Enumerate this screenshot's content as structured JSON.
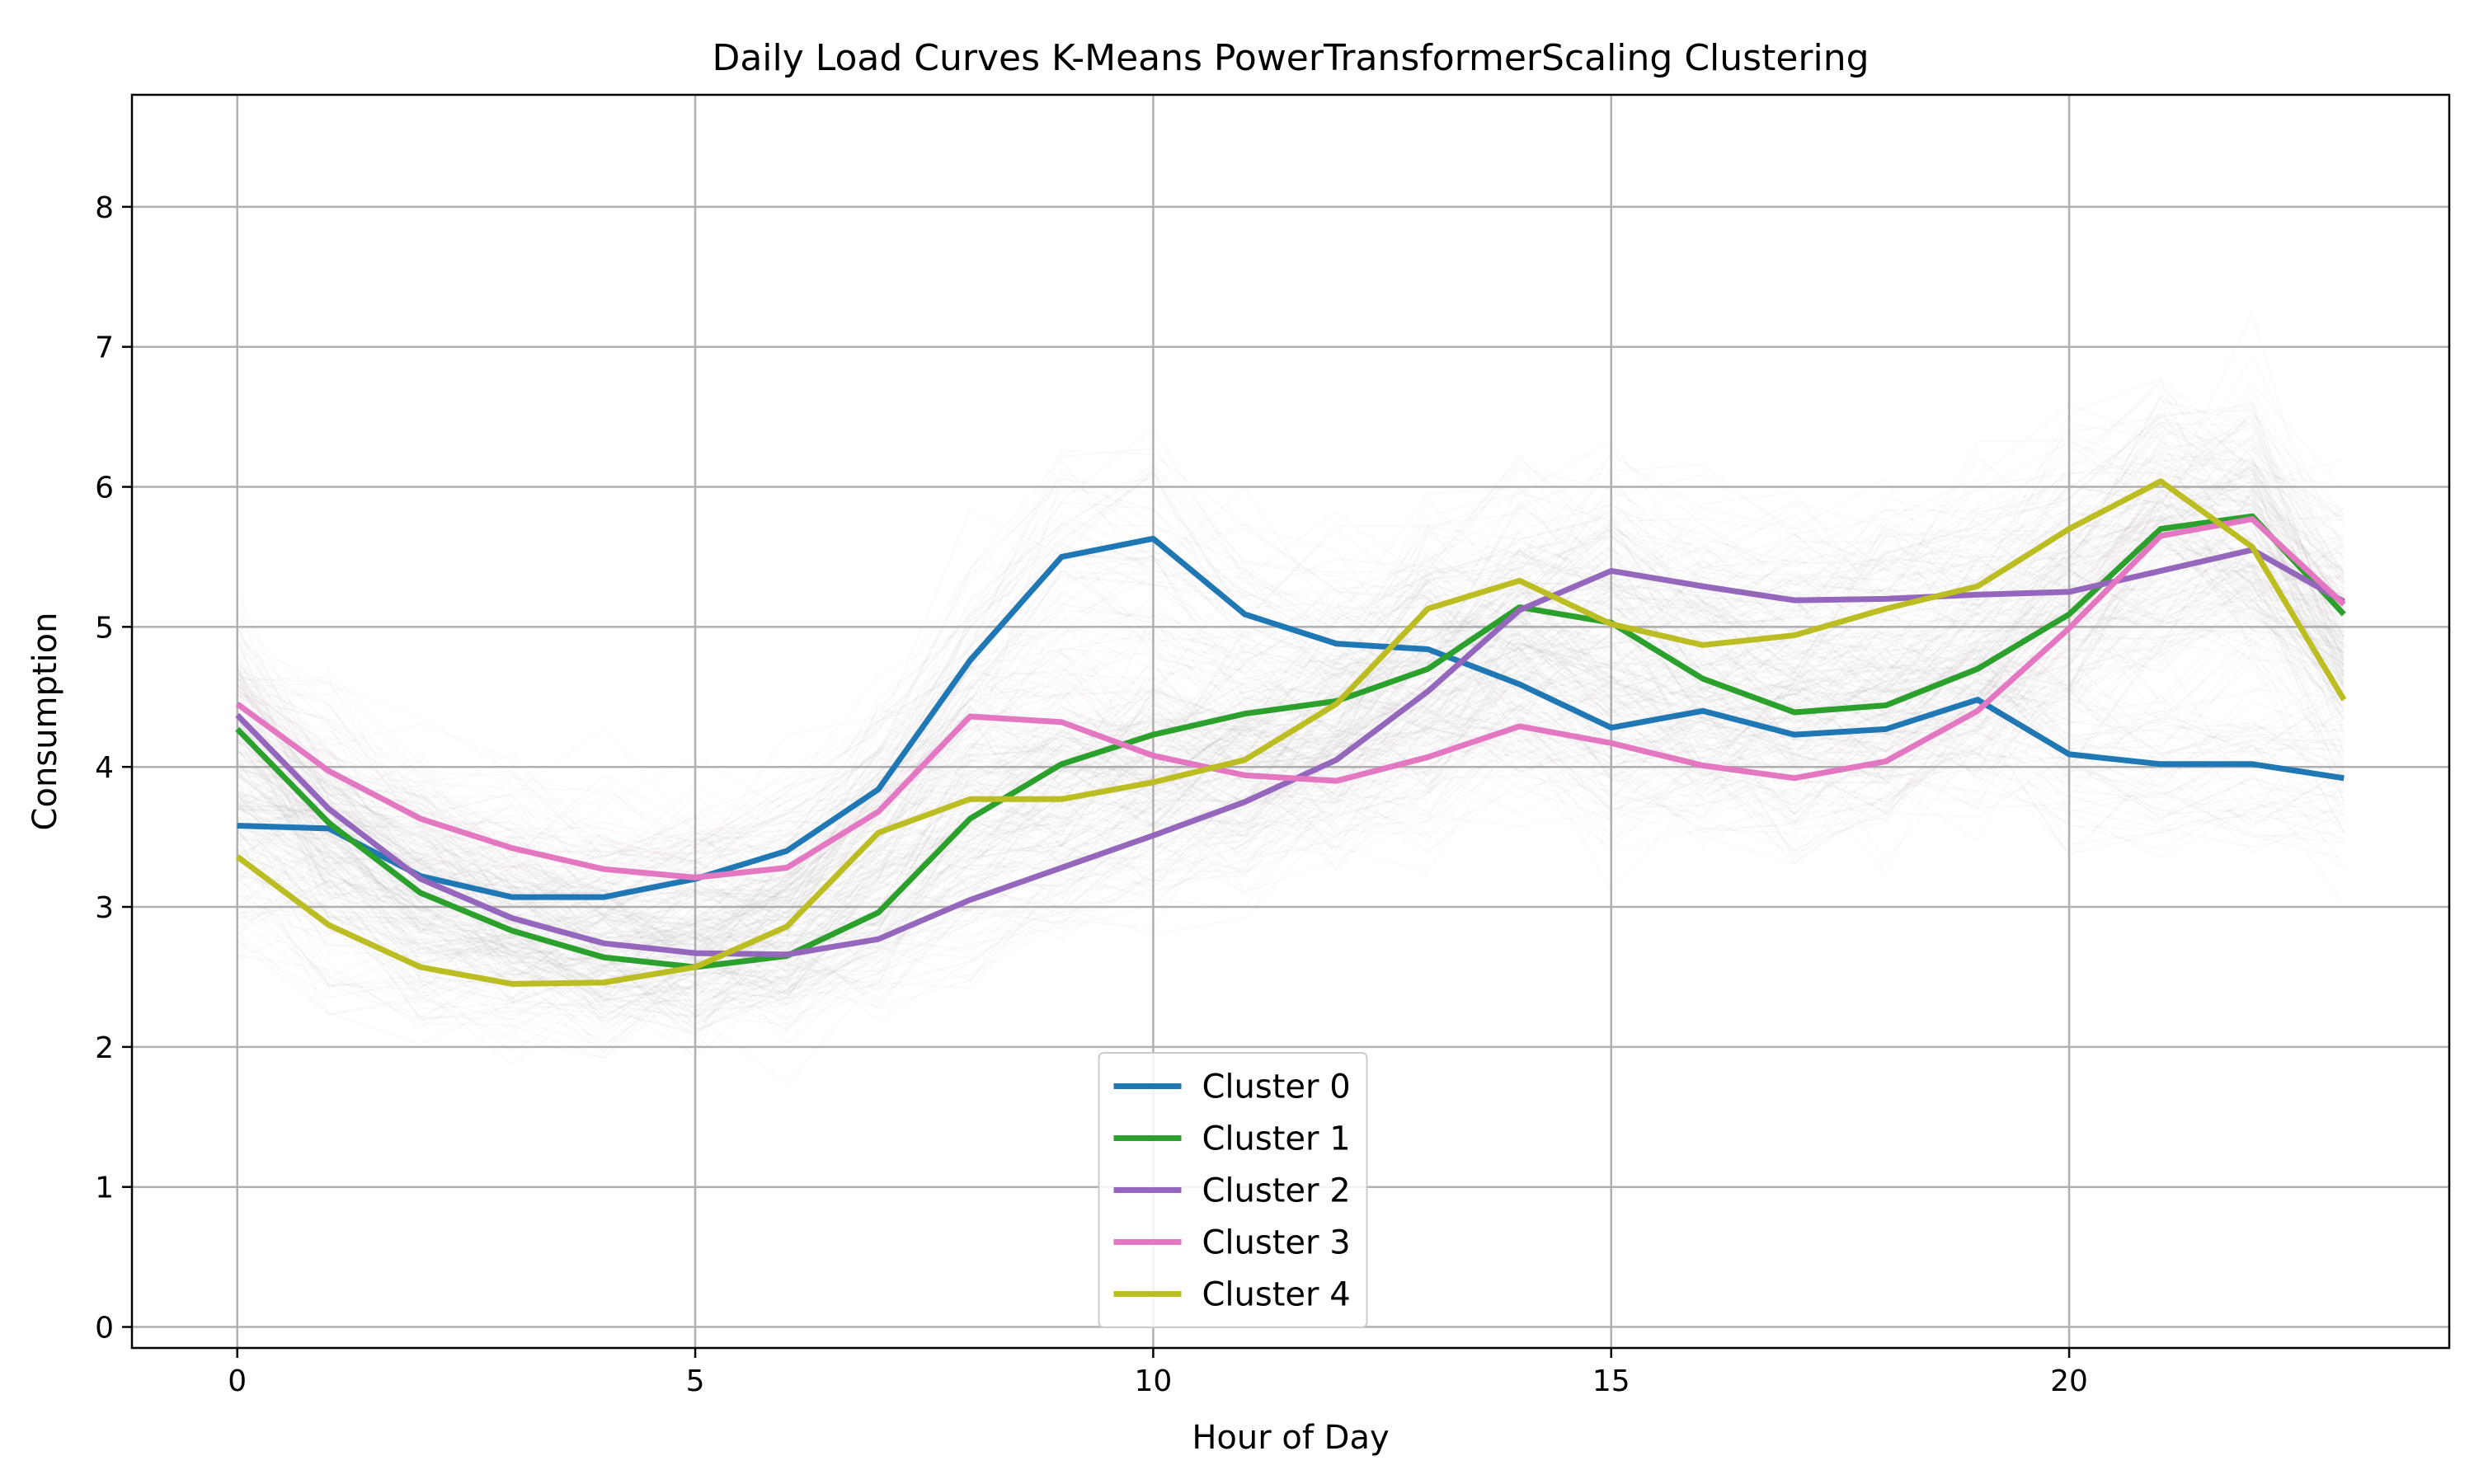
{
  "chart_data": {
    "type": "line",
    "title": "Daily Load Curves K-Means PowerTransformerScaling Clustering",
    "xlabel": "Hour of Day",
    "ylabel": "Consumption",
    "xlim": [
      -1.15,
      24.15
    ],
    "ylim": [
      -0.15,
      8.8
    ],
    "xticks": [
      0,
      5,
      10,
      15,
      20
    ],
    "yticks": [
      0,
      1,
      2,
      3,
      4,
      5,
      6,
      7,
      8
    ],
    "grid": true,
    "legend_position": "bottom-center",
    "x": [
      0,
      1,
      2,
      3,
      4,
      5,
      6,
      7,
      8,
      9,
      10,
      11,
      12,
      13,
      14,
      15,
      16,
      17,
      18,
      19,
      20,
      21,
      22,
      23
    ],
    "background_curves": {
      "color": "#808080",
      "description_visible": false
    },
    "series": [
      {
        "name": "Cluster 0",
        "color": "#1f77b4",
        "values": [
          3.58,
          3.56,
          3.22,
          3.07,
          3.07,
          3.2,
          3.4,
          3.84,
          4.76,
          5.5,
          5.63,
          5.09,
          4.88,
          4.84,
          4.59,
          4.28,
          4.4,
          4.23,
          4.27,
          4.48,
          4.09,
          4.02,
          4.02,
          3.92
        ]
      },
      {
        "name": "Cluster 1",
        "color": "#2ca02c",
        "values": [
          4.27,
          3.6,
          3.1,
          2.83,
          2.64,
          2.57,
          2.65,
          2.96,
          3.63,
          4.02,
          4.23,
          4.38,
          4.47,
          4.7,
          5.14,
          5.03,
          4.63,
          4.39,
          4.44,
          4.7,
          5.09,
          5.7,
          5.79,
          5.09
        ]
      },
      {
        "name": "Cluster 2",
        "color": "#9467bd",
        "values": [
          4.37,
          3.7,
          3.2,
          2.92,
          2.74,
          2.67,
          2.66,
          2.77,
          3.05,
          3.28,
          3.51,
          3.75,
          4.05,
          4.54,
          5.12,
          5.4,
          5.29,
          5.19,
          5.2,
          5.23,
          5.25,
          5.4,
          5.55,
          5.18
        ]
      },
      {
        "name": "Cluster 3",
        "color": "#e377c2",
        "values": [
          4.45,
          3.97,
          3.63,
          3.42,
          3.27,
          3.21,
          3.28,
          3.68,
          4.36,
          4.32,
          4.08,
          3.94,
          3.9,
          4.07,
          4.29,
          4.17,
          4.01,
          3.92,
          4.04,
          4.4,
          4.99,
          5.65,
          5.77,
          5.16
        ]
      },
      {
        "name": "Cluster 4",
        "color": "#bcbd22",
        "values": [
          3.36,
          2.87,
          2.57,
          2.45,
          2.46,
          2.57,
          2.86,
          3.53,
          3.77,
          3.77,
          3.89,
          4.05,
          4.45,
          5.13,
          5.33,
          5.02,
          4.87,
          4.94,
          5.13,
          5.29,
          5.7,
          6.04,
          5.57,
          4.48
        ]
      }
    ]
  }
}
